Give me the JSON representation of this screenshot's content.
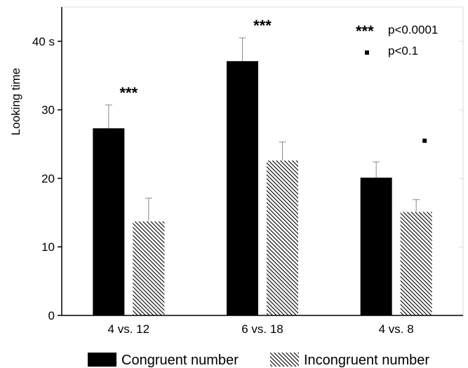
{
  "chart_data": {
    "type": "bar",
    "categories": [
      "4 vs. 12",
      "6 vs. 18",
      "4 vs. 8"
    ],
    "series": [
      {
        "name": "Congruent number",
        "values": [
          27.3,
          37.1,
          20.1
        ],
        "errors": [
          3.4,
          3.4,
          2.3
        ],
        "fill": "solid"
      },
      {
        "name": "Incongruent number",
        "values": [
          13.7,
          22.6,
          15.1
        ],
        "errors": [
          3.4,
          2.7,
          1.8
        ],
        "fill": "hatched"
      }
    ],
    "ylabel": "Looking time",
    "ylim": [
      0,
      45
    ],
    "yticks": [
      {
        "value": 0,
        "label": "0"
      },
      {
        "value": 10,
        "label": "10"
      },
      {
        "value": 20,
        "label": "20"
      },
      {
        "value": 30,
        "label": "30"
      },
      {
        "value": 40,
        "label": "40 s"
      }
    ],
    "significance": [
      {
        "category": 0,
        "marker": "***"
      },
      {
        "category": 1,
        "marker": "***"
      },
      {
        "category": 2,
        "marker": "dot"
      }
    ],
    "significance_key": [
      {
        "marker": "***",
        "text": "p<0.0001"
      },
      {
        "marker": "dot",
        "text": "p<0.1"
      }
    ],
    "legend_position": "bottom",
    "grid": false,
    "colors": {
      "bar": "#000000",
      "hatch": "#000000",
      "axis": "#000000",
      "frame": "#d9d9d9"
    }
  }
}
